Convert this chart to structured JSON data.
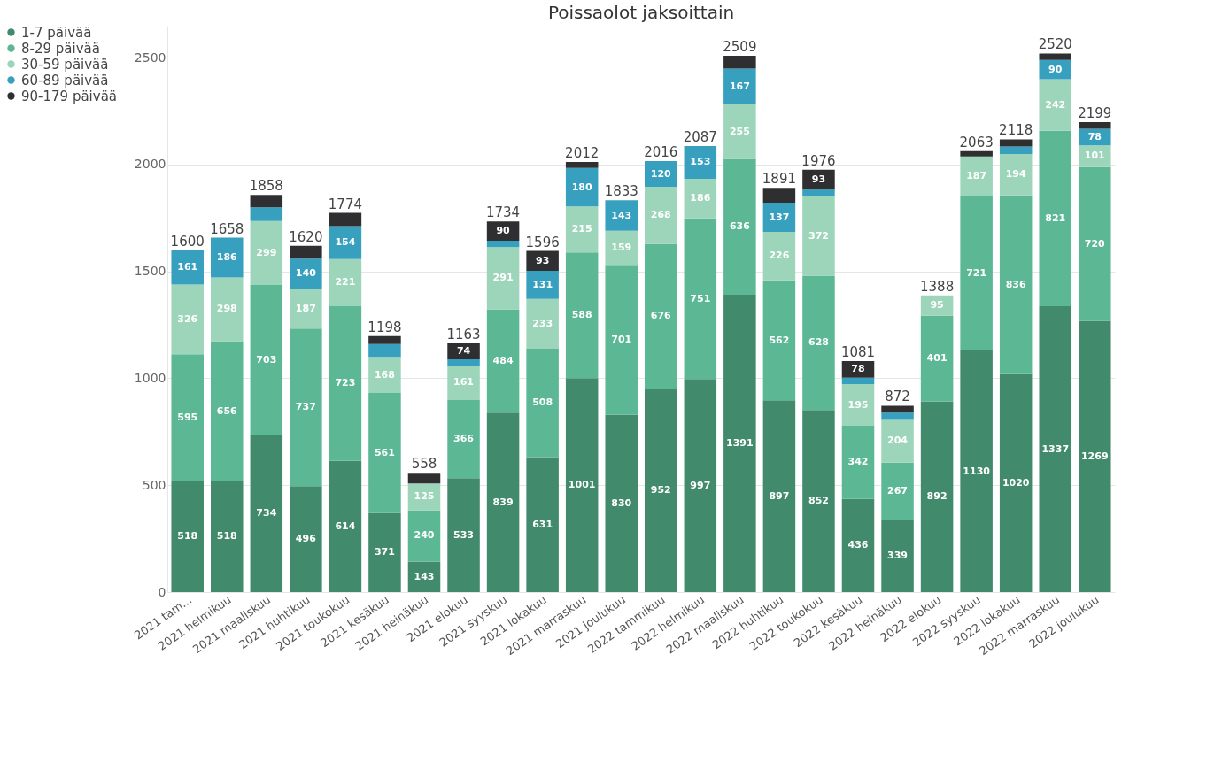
{
  "chart_data": {
    "type": "bar",
    "stacked": true,
    "title": "Poissaolot jaksoittain",
    "categories": [
      "2021 tam...",
      "2021 helmikuu",
      "2021 maaliskuu",
      "2021 huhtikuu",
      "2021 toukokuu",
      "2021 kesäkuu",
      "2021 heinäkuu",
      "2021 elokuu",
      "2021 syyskuu",
      "2021 lokakuu",
      "2021 marraskuu",
      "2021 joulukuu",
      "2022 tammikuu",
      "2022 helmikuu",
      "2022 maaliskuu",
      "2022 huhtikuu",
      "2022 toukokuu",
      "2022 kesäkuu",
      "2022 heinäkuu",
      "2022 elokuu",
      "2022 syyskuu",
      "2022 lokakuu",
      "2022 marraskuu",
      "2022 joulukuu"
    ],
    "series": [
      {
        "name": "1-7 päivää",
        "color": "#418a6c",
        "values": [
          518,
          518,
          734,
          496,
          614,
          371,
          143,
          533,
          839,
          631,
          1001,
          830,
          952,
          997,
          1391,
          897,
          852,
          436,
          339,
          892,
          1130,
          1020,
          1337,
          1269
        ],
        "value_labels": [
          "518",
          "518",
          "734",
          "496",
          "614",
          "371",
          "143",
          "533",
          "839",
          "631",
          "1001",
          "830",
          "952",
          "997",
          "1391",
          "897",
          "852",
          "436",
          "339",
          "892",
          "1130",
          "1020",
          "1337",
          "1269"
        ]
      },
      {
        "name": "8-29 päivää",
        "color": "#5cb894",
        "values": [
          595,
          656,
          703,
          737,
          723,
          561,
          240,
          366,
          484,
          508,
          588,
          701,
          676,
          751,
          636,
          562,
          628,
          342,
          267,
          401,
          721,
          836,
          821,
          720
        ],
        "value_labels": [
          "595",
          "656",
          "703",
          "737",
          "723",
          "561",
          "240",
          "366",
          "484",
          "508",
          "588",
          "701",
          "676",
          "751",
          "636",
          "562",
          "628",
          "342",
          "267",
          "401",
          "721",
          "836",
          "821",
          "720"
        ]
      },
      {
        "name": "30-59 päivää",
        "color": "#9dd5bb",
        "values": [
          326,
          298,
          299,
          187,
          221,
          168,
          125,
          161,
          291,
          233,
          215,
          159,
          268,
          186,
          255,
          226,
          372,
          195,
          204,
          95,
          187,
          194,
          242,
          101
        ],
        "value_labels": [
          "326",
          "298",
          "299",
          "187",
          "221",
          "168",
          "125",
          "161",
          "291",
          "233",
          "215",
          "159",
          "268",
          "186",
          "255",
          "226",
          "372",
          "195",
          "204",
          "95",
          "187",
          "194",
          "242",
          "101"
        ]
      },
      {
        "name": "60-89 päivää",
        "color": "#37a0bf",
        "values": [
          161,
          186,
          64,
          140,
          154,
          60,
          0,
          29,
          30,
          131,
          180,
          143,
          120,
          153,
          167,
          137,
          31,
          30,
          30,
          0,
          0,
          35,
          90,
          78
        ],
        "value_labels": [
          "161",
          "186",
          null,
          "140",
          "154",
          null,
          null,
          null,
          null,
          "131",
          "180",
          "143",
          "120",
          "153",
          "167",
          "137",
          null,
          null,
          null,
          null,
          null,
          null,
          "90",
          "78"
        ]
      },
      {
        "name": "90-179 päivää",
        "color": "#2f2f31",
        "values": [
          0,
          0,
          58,
          60,
          62,
          38,
          50,
          74,
          90,
          93,
          28,
          0,
          0,
          0,
          60,
          69,
          93,
          78,
          32,
          0,
          25,
          33,
          30,
          31
        ],
        "value_labels": [
          null,
          null,
          null,
          null,
          null,
          null,
          null,
          "74",
          "90",
          "93",
          null,
          null,
          null,
          null,
          null,
          null,
          "93",
          "78",
          null,
          null,
          null,
          null,
          null,
          null
        ]
      }
    ],
    "totals": [
      "1600",
      "1658",
      "1858",
      "1620",
      "1774",
      "1198",
      "558",
      "1163",
      "1734",
      "1596",
      "2012",
      "1833",
      "2016",
      "2087",
      "2509",
      "1891",
      "1976",
      "1081",
      "872",
      "1388",
      "2063",
      "2118",
      "2520",
      "2199"
    ],
    "ylim": [
      0,
      2650
    ],
    "yticks": [
      0,
      500,
      1000,
      1500,
      2000,
      2500
    ],
    "grid": "y",
    "legend": "left"
  }
}
